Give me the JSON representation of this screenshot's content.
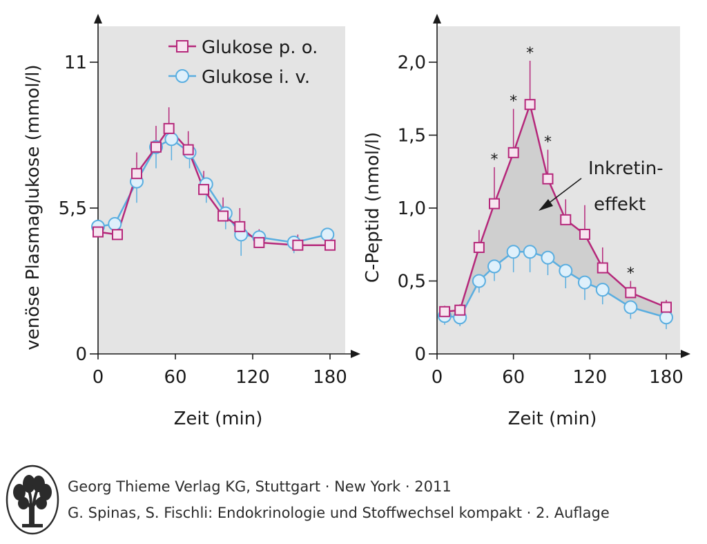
{
  "chart_data": [
    {
      "type": "line",
      "ylabel": "venöse Plasmaglukose (mmol/l)",
      "xlabel": "Zeit (min)",
      "x_ticks": [
        0,
        60,
        120,
        180
      ],
      "y_ticks": [
        0,
        5.5,
        11
      ],
      "y_tick_labels": [
        "0",
        "5,5",
        "11"
      ],
      "xlim": [
        0,
        180
      ],
      "ylim": [
        0,
        11
      ],
      "legend": "top-right",
      "series": [
        {
          "name": "Glukose p. o.",
          "marker": "square",
          "color": "#b5277a",
          "x": [
            0,
            15,
            30,
            45,
            55,
            70,
            82,
            97,
            110,
            125,
            155,
            180
          ],
          "y": [
            4.6,
            4.5,
            6.8,
            7.8,
            8.5,
            7.7,
            6.2,
            5.2,
            4.8,
            4.2,
            4.1,
            4.1
          ],
          "err": [
            0.3,
            0.3,
            0.8,
            0.8,
            0.8,
            0.7,
            0.7,
            0.7,
            0.7,
            0.5,
            0.4,
            0.4
          ]
        },
        {
          "name": "Glukose i. v.",
          "marker": "circle",
          "color": "#5aaee0",
          "x": [
            0,
            13,
            30,
            45,
            57,
            71,
            84,
            99,
            111,
            125,
            152,
            178
          ],
          "y": [
            4.8,
            4.9,
            6.5,
            7.8,
            8.1,
            7.6,
            6.4,
            5.3,
            4.5,
            4.4,
            4.2,
            4.5
          ],
          "err": [
            0.3,
            0.3,
            0.8,
            0.8,
            0.8,
            0.6,
            0.7,
            0.6,
            0.8,
            0.4,
            0.4,
            0.4
          ]
        }
      ]
    },
    {
      "type": "line",
      "ylabel": "C-Peptid (nmol/l)",
      "xlabel": "Zeit (min)",
      "x_ticks": [
        0,
        60,
        120,
        180
      ],
      "y_ticks": [
        0,
        0.5,
        1.0,
        1.5,
        2.0
      ],
      "y_tick_labels": [
        "0",
        "0,5",
        "1,0",
        "1,5",
        "2,0"
      ],
      "xlim": [
        0,
        180
      ],
      "ylim": [
        0,
        2.0
      ],
      "shaded_between_series": true,
      "annotation": "Inkretin-\neffekt",
      "significance_marker": "*",
      "series": [
        {
          "name": "Glukose p. o.",
          "marker": "square",
          "color": "#b5277a",
          "x": [
            6,
            18,
            33,
            45,
            60,
            73,
            87,
            101,
            116,
            130,
            152,
            180
          ],
          "y": [
            0.29,
            0.3,
            0.73,
            1.03,
            1.38,
            1.71,
            1.2,
            0.92,
            0.82,
            0.59,
            0.42,
            0.32
          ],
          "err": [
            0.04,
            0.04,
            0.12,
            0.25,
            0.3,
            0.3,
            0.2,
            0.14,
            0.2,
            0.14,
            0.08,
            0.05
          ],
          "significant": [
            false,
            false,
            false,
            true,
            true,
            true,
            true,
            false,
            false,
            false,
            true,
            false
          ]
        },
        {
          "name": "Glukose i. v.",
          "marker": "circle",
          "color": "#5aaee0",
          "x": [
            6,
            18,
            33,
            45,
            60,
            73,
            87,
            101,
            116,
            130,
            152,
            180
          ],
          "y": [
            0.26,
            0.25,
            0.5,
            0.6,
            0.7,
            0.7,
            0.66,
            0.57,
            0.49,
            0.44,
            0.32,
            0.25
          ],
          "err": [
            0.06,
            0.06,
            0.08,
            0.1,
            0.14,
            0.14,
            0.12,
            0.12,
            0.12,
            0.1,
            0.08,
            0.08
          ]
        }
      ]
    }
  ],
  "footer": {
    "line1": "Georg Thieme Verlag KG, Stuttgart · New York · 2011",
    "line2": "G. Spinas, S. Fischli: Endokrinologie und Stoffwechsel kompakt · 2. Auflage"
  },
  "colors": {
    "plot_background": "#e4e4e4",
    "shade": "#cfcfcf",
    "po": "#b5277a",
    "iv": "#5aaee0",
    "marker_fill_po": "#f6e4ef",
    "marker_fill_iv": "#dff0fb",
    "axis": "#1a1a1a"
  },
  "icons": [
    "thieme-tree-logo"
  ]
}
